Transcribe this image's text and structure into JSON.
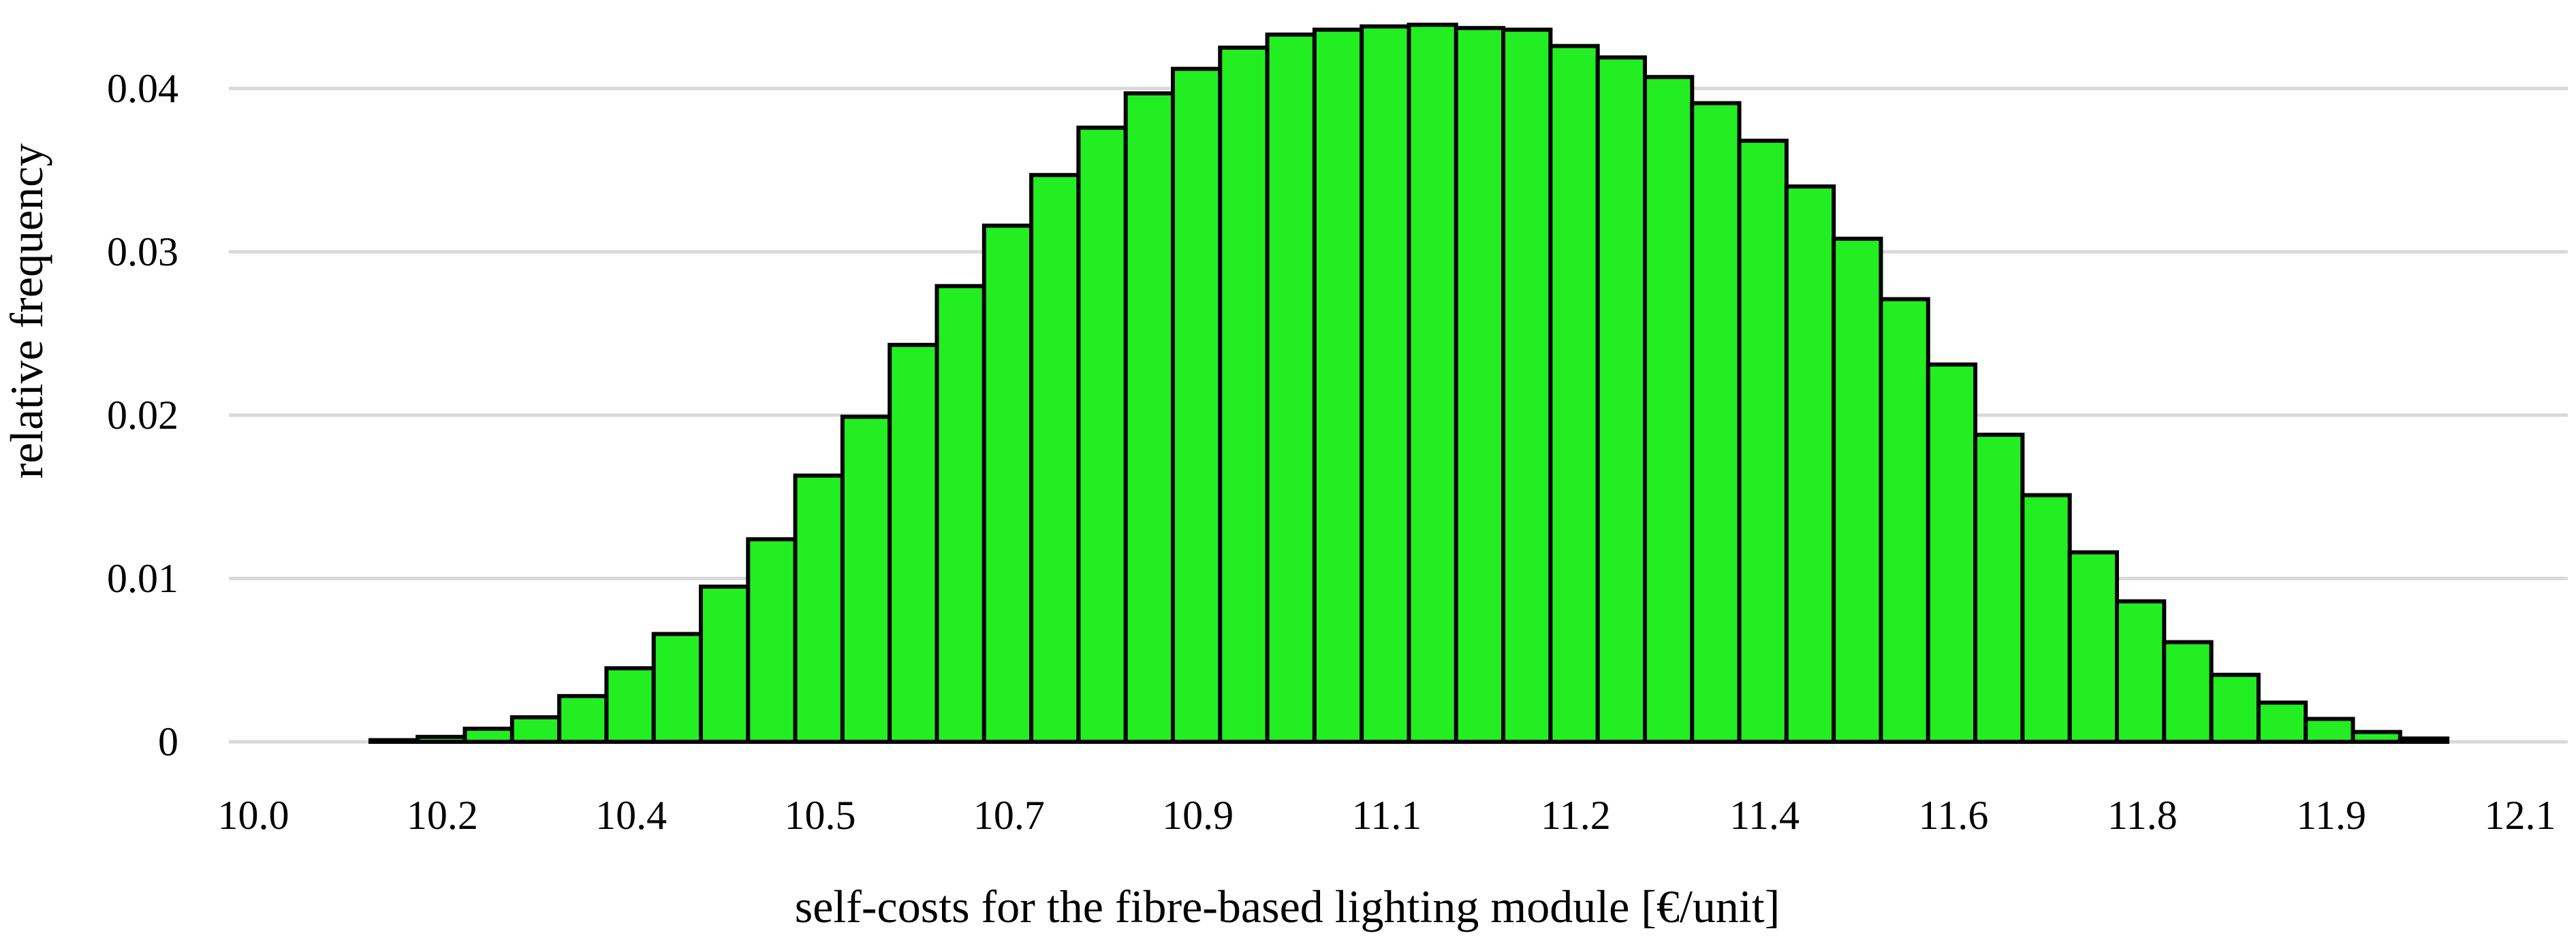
{
  "chart_data": {
    "type": "bar",
    "title": "",
    "xlabel": "self-costs for the fibre-based lighting module [€/unit]",
    "ylabel": "relative frequency",
    "ylim": [
      0,
      0.045
    ],
    "y_ticks": [
      "0",
      "0.01",
      "0.02",
      "0.03",
      "0.04"
    ],
    "y_tick_values": [
      0,
      0.01,
      0.02,
      0.03,
      0.04
    ],
    "x_tick_labels": [
      "10.0",
      "10.2",
      "10.4",
      "10.5",
      "10.7",
      "10.9",
      "11.1",
      "11.2",
      "11.4",
      "11.6",
      "11.8",
      "11.9",
      "12.1"
    ],
    "grid": true,
    "bar_color": "#22ee22",
    "bar_edge_color": "#000000",
    "grid_color": "#d9d9d9",
    "values": [
      0.0,
      0.0,
      0.0,
      0.0001,
      0.0003,
      0.0008,
      0.0015,
      0.0028,
      0.0045,
      0.0066,
      0.0095,
      0.0124,
      0.0163,
      0.0199,
      0.0243,
      0.0279,
      0.0316,
      0.0347,
      0.0376,
      0.0397,
      0.0412,
      0.0425,
      0.0433,
      0.0436,
      0.0438,
      0.0439,
      0.0437,
      0.0436,
      0.0426,
      0.0419,
      0.0407,
      0.0391,
      0.0368,
      0.034,
      0.0308,
      0.0271,
      0.0231,
      0.0188,
      0.0151,
      0.0116,
      0.0086,
      0.0061,
      0.0041,
      0.0024,
      0.0014,
      0.0006,
      0.0002,
      0.0,
      0.0
    ]
  }
}
